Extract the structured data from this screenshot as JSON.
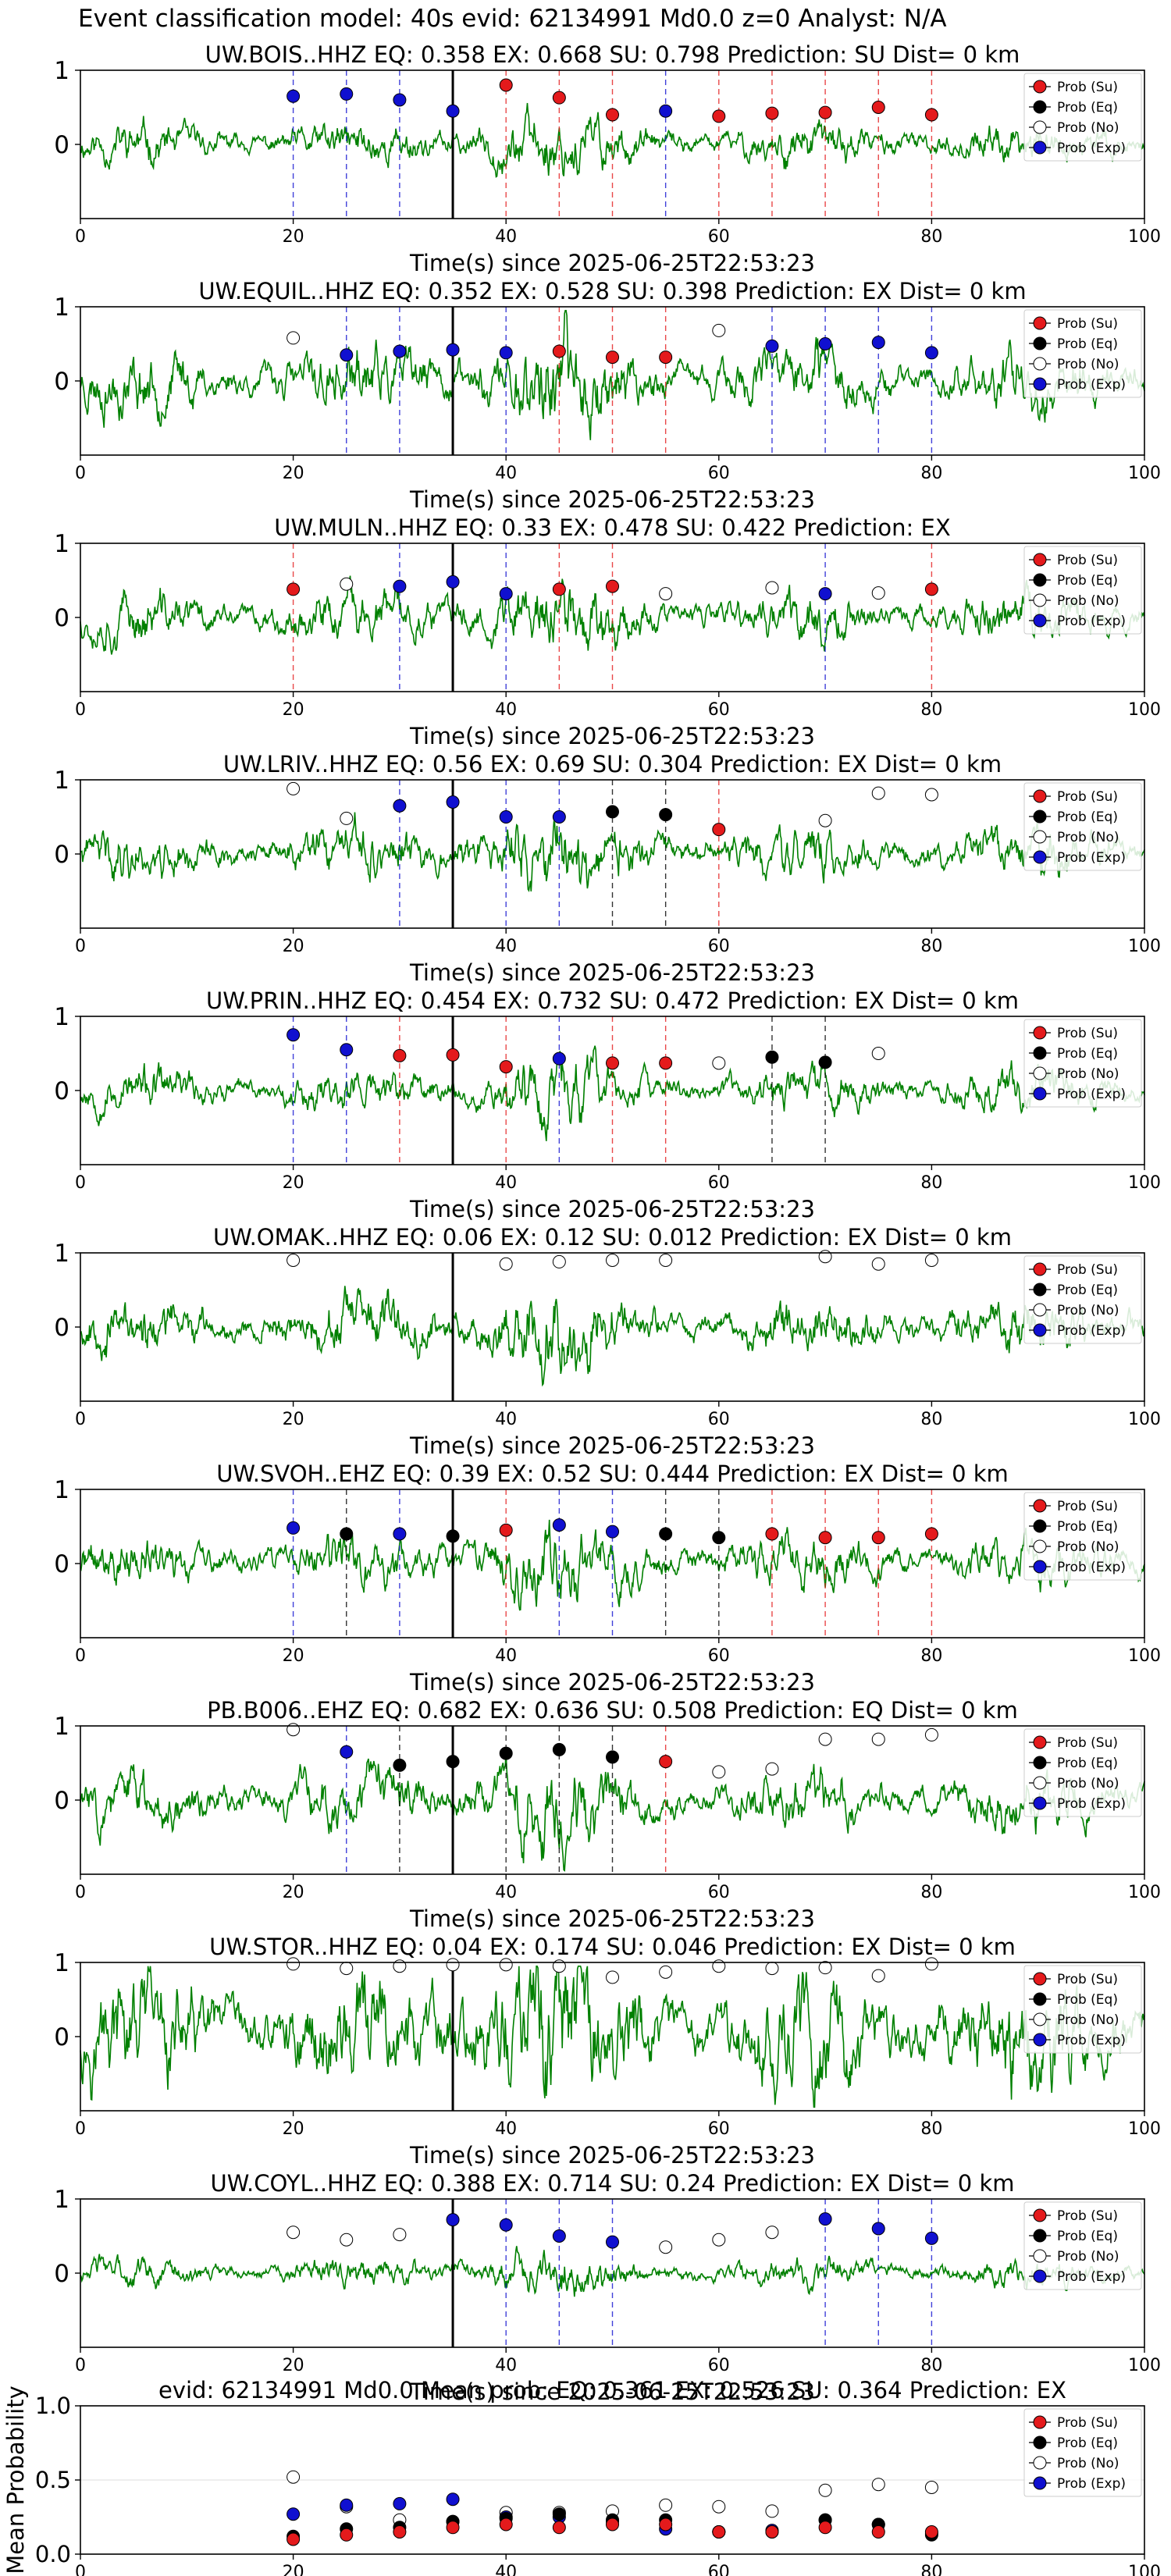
{
  "figure": {
    "suptitle": "Event classification model: 40s evid: 62134991 Md0.0 z=0 Analyst: N/A",
    "xlabel": "Time(s) since 2025-06-25T22:53:23",
    "legend": [
      "Prob (Su)",
      "Prob (Eq)",
      "Prob (No)",
      "Prob (Exp)"
    ],
    "colors": {
      "waveform": "#008000",
      "su": "#e41a1c",
      "eq": "#000000",
      "no": "#ffffff",
      "exp": "#1010d0",
      "event_line": "#000000"
    },
    "event_time": 35,
    "xlim": [
      0,
      100
    ],
    "xticks": [
      0,
      20,
      40,
      60,
      80,
      100
    ],
    "yticks": [
      "0",
      "1"
    ]
  },
  "chart_data": [
    {
      "type": "line",
      "title": "UW.BOIS..HHZ   EQ: 0.358  EX: 0.668  SU: 0.798   Prediction: SU    Dist= 0 km",
      "amp": 0.22,
      "freq": 1.0,
      "seed": 11,
      "points": [
        [
          20,
          "exp",
          0.65
        ],
        [
          25,
          "exp",
          0.68
        ],
        [
          30,
          "exp",
          0.6
        ],
        [
          35,
          "exp",
          0.45
        ],
        [
          40,
          "su",
          0.8
        ],
        [
          45,
          "su",
          0.63
        ],
        [
          50,
          "su",
          0.4
        ],
        [
          55,
          "exp",
          0.45
        ],
        [
          60,
          "su",
          0.38
        ],
        [
          65,
          "su",
          0.42
        ],
        [
          70,
          "su",
          0.43
        ],
        [
          75,
          "su",
          0.5
        ],
        [
          80,
          "su",
          0.4
        ]
      ]
    },
    {
      "type": "line",
      "title": "UW.EQUIL..HHZ   EQ: 0.352  EX: 0.528  SU: 0.398   Prediction: EX    Dist= 0 km",
      "amp": 0.25,
      "freq": 1.4,
      "seed": 23,
      "points": [
        [
          20,
          "no",
          0.58
        ],
        [
          25,
          "exp",
          0.35
        ],
        [
          30,
          "exp",
          0.4
        ],
        [
          35,
          "exp",
          0.42
        ],
        [
          40,
          "exp",
          0.38
        ],
        [
          45,
          "su",
          0.4
        ],
        [
          50,
          "su",
          0.32
        ],
        [
          55,
          "su",
          0.32
        ],
        [
          60,
          "no",
          0.68
        ],
        [
          65,
          "exp",
          0.47
        ],
        [
          70,
          "exp",
          0.5
        ],
        [
          75,
          "exp",
          0.52
        ],
        [
          80,
          "exp",
          0.38
        ]
      ]
    },
    {
      "type": "line",
      "title": "UW.MULN..HHZ   EQ: 0.33  EX: 0.478  SU: 0.422   Prediction: EX",
      "amp": 0.18,
      "freq": 1.6,
      "seed": 37,
      "points": [
        [
          20,
          "su",
          0.38
        ],
        [
          25,
          "no",
          0.45
        ],
        [
          30,
          "exp",
          0.42
        ],
        [
          35,
          "exp",
          0.48
        ],
        [
          40,
          "exp",
          0.32
        ],
        [
          45,
          "su",
          0.38
        ],
        [
          50,
          "su",
          0.42
        ],
        [
          55,
          "no",
          0.32
        ],
        [
          65,
          "no",
          0.4
        ],
        [
          70,
          "exp",
          0.32
        ],
        [
          75,
          "no",
          0.33
        ],
        [
          80,
          "su",
          0.38
        ]
      ]
    },
    {
      "type": "line",
      "title": "UW.LRIV..HHZ   EQ: 0.56  EX: 0.69  SU: 0.304   Prediction: EX    Dist= 0 km",
      "amp": 0.45,
      "freq": 0.5,
      "seed": 41,
      "points": [
        [
          20,
          "no",
          0.88
        ],
        [
          25,
          "no",
          0.48
        ],
        [
          30,
          "exp",
          0.65
        ],
        [
          35,
          "exp",
          0.7
        ],
        [
          40,
          "exp",
          0.5
        ],
        [
          45,
          "exp",
          0.5
        ],
        [
          50,
          "eq",
          0.57
        ],
        [
          55,
          "eq",
          0.53
        ],
        [
          60,
          "su",
          0.33
        ],
        [
          70,
          "no",
          0.45
        ],
        [
          75,
          "no",
          0.82
        ],
        [
          80,
          "no",
          0.8
        ]
      ]
    },
    {
      "type": "line",
      "title": "UW.PRIN..HHZ   EQ: 0.454  EX: 0.732  SU: 0.472   Prediction: EX    Dist= 0 km",
      "amp": 0.2,
      "freq": 1.2,
      "seed": 53,
      "points": [
        [
          20,
          "exp",
          0.75
        ],
        [
          25,
          "exp",
          0.55
        ],
        [
          30,
          "su",
          0.47
        ],
        [
          35,
          "su",
          0.48
        ],
        [
          40,
          "su",
          0.32
        ],
        [
          45,
          "exp",
          0.43
        ],
        [
          50,
          "su",
          0.37
        ],
        [
          55,
          "su",
          0.37
        ],
        [
          60,
          "no",
          0.37
        ],
        [
          65,
          "eq",
          0.45
        ],
        [
          70,
          "eq",
          0.38
        ],
        [
          75,
          "no",
          0.5
        ]
      ]
    },
    {
      "type": "line",
      "title": "UW.OMAK..HHZ   EQ: 0.06  EX: 0.12  SU: 0.012   Prediction: EX    Dist= 0 km",
      "amp": 0.42,
      "freq": 0.6,
      "seed": 67,
      "points": [
        [
          20,
          "no",
          0.9
        ],
        [
          40,
          "no",
          0.85
        ],
        [
          45,
          "no",
          0.88
        ],
        [
          50,
          "no",
          0.9
        ],
        [
          55,
          "no",
          0.9
        ],
        [
          70,
          "no",
          0.95
        ],
        [
          75,
          "no",
          0.85
        ],
        [
          80,
          "no",
          0.9
        ]
      ]
    },
    {
      "type": "line",
      "title": "UW.SVOH..EHZ   EQ: 0.39  EX: 0.52  SU: 0.444   Prediction: EX    Dist= 0 km",
      "amp": 0.16,
      "freq": 1.8,
      "seed": 71,
      "points": [
        [
          20,
          "exp",
          0.48
        ],
        [
          25,
          "eq",
          0.4
        ],
        [
          30,
          "exp",
          0.4
        ],
        [
          35,
          "eq",
          0.37
        ],
        [
          40,
          "su",
          0.45
        ],
        [
          45,
          "exp",
          0.52
        ],
        [
          50,
          "exp",
          0.43
        ],
        [
          55,
          "eq",
          0.4
        ],
        [
          60,
          "eq",
          0.35
        ],
        [
          65,
          "su",
          0.4
        ],
        [
          70,
          "su",
          0.35
        ],
        [
          75,
          "su",
          0.35
        ],
        [
          80,
          "su",
          0.4
        ]
      ]
    },
    {
      "type": "line",
      "title": "PB.B006..EHZ   EQ: 0.682  EX: 0.636  SU: 0.508   Prediction: EQ    Dist= 0 km",
      "amp": 0.28,
      "freq": 1.1,
      "seed": 83,
      "points": [
        [
          20,
          "no",
          0.95
        ],
        [
          25,
          "exp",
          0.65
        ],
        [
          30,
          "eq",
          0.47
        ],
        [
          35,
          "eq",
          0.52
        ],
        [
          40,
          "eq",
          0.63
        ],
        [
          45,
          "eq",
          0.68
        ],
        [
          50,
          "eq",
          0.58
        ],
        [
          55,
          "su",
          0.52
        ],
        [
          60,
          "no",
          0.38
        ],
        [
          65,
          "no",
          0.42
        ],
        [
          70,
          "no",
          0.82
        ],
        [
          75,
          "no",
          0.82
        ],
        [
          80,
          "no",
          0.88
        ]
      ]
    },
    {
      "type": "line",
      "title": "UW.STOR..HHZ   EQ: 0.04  EX: 0.174  SU: 0.046   Prediction: EX    Dist= 0 km",
      "amp": 0.45,
      "freq": 1.3,
      "seed": 97,
      "points": [
        [
          20,
          "no",
          0.98
        ],
        [
          25,
          "no",
          0.92
        ],
        [
          30,
          "no",
          0.95
        ],
        [
          35,
          "no",
          0.97
        ],
        [
          40,
          "no",
          0.97
        ],
        [
          45,
          "no",
          0.95
        ],
        [
          50,
          "no",
          0.8
        ],
        [
          55,
          "no",
          0.87
        ],
        [
          60,
          "no",
          0.95
        ],
        [
          65,
          "no",
          0.92
        ],
        [
          70,
          "no",
          0.93
        ],
        [
          75,
          "no",
          0.82
        ],
        [
          80,
          "no",
          0.98
        ]
      ]
    },
    {
      "type": "line",
      "title": "UW.COYL..HHZ   EQ: 0.388  EX: 0.714  SU: 0.24   Prediction: EX    Dist= 0 km",
      "amp": 0.13,
      "freq": 1.2,
      "seed": 103,
      "points": [
        [
          20,
          "no",
          0.55
        ],
        [
          25,
          "no",
          0.45
        ],
        [
          30,
          "no",
          0.52
        ],
        [
          35,
          "exp",
          0.72
        ],
        [
          40,
          "exp",
          0.65
        ],
        [
          45,
          "exp",
          0.5
        ],
        [
          50,
          "exp",
          0.42
        ],
        [
          55,
          "no",
          0.35
        ],
        [
          60,
          "no",
          0.45
        ],
        [
          65,
          "no",
          0.55
        ],
        [
          70,
          "exp",
          0.73
        ],
        [
          75,
          "exp",
          0.6
        ],
        [
          80,
          "exp",
          0.47
        ]
      ]
    },
    {
      "type": "scatter",
      "title": "evid: 62134991  Md0.0   Mean prob:   EQ: 0.361  EX: 0.526  SU: 0.364   Prediction: EX",
      "ylabel": "Mean Probability",
      "ylim": [
        0,
        1
      ],
      "yticks": [
        "0.0",
        "0.5",
        "1.0"
      ],
      "x": [
        20,
        25,
        30,
        35,
        40,
        45,
        50,
        55,
        60,
        65,
        70,
        75,
        80
      ],
      "series": [
        {
          "name": "Prob (No)",
          "key": "no",
          "values": [
            0.52,
            0.32,
            0.23,
            0.22,
            0.28,
            0.28,
            0.29,
            0.33,
            0.32,
            0.29,
            0.43,
            0.47,
            0.45
          ]
        },
        {
          "name": "Prob (Exp)",
          "key": "exp",
          "values": [
            0.27,
            0.33,
            0.34,
            0.37,
            0.25,
            0.25,
            0.22,
            0.17,
            0.15,
            0.16,
            0.23,
            0.2,
            0.14
          ]
        },
        {
          "name": "Prob (Eq)",
          "key": "eq",
          "values": [
            0.12,
            0.17,
            0.18,
            0.22,
            0.24,
            0.27,
            0.23,
            0.23,
            0.15,
            0.15,
            0.23,
            0.2,
            0.13
          ]
        },
        {
          "name": "Prob (Su)",
          "key": "su",
          "values": [
            0.1,
            0.13,
            0.15,
            0.18,
            0.2,
            0.18,
            0.2,
            0.2,
            0.15,
            0.15,
            0.18,
            0.15,
            0.15
          ]
        }
      ]
    }
  ]
}
